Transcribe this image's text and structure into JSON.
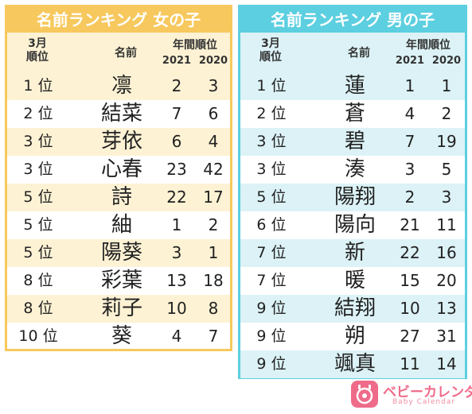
{
  "columns": {
    "month": "3月\n順位",
    "name": "名前",
    "annual": "年間順位",
    "year1": "2021",
    "year2": "2020"
  },
  "girls": {
    "title": "名前ランキング 女の子",
    "rows": [
      {
        "rank": "1 位",
        "name": "凛",
        "y2021": "2",
        "y2020": "3"
      },
      {
        "rank": "2 位",
        "name": "結菜",
        "y2021": "7",
        "y2020": "6"
      },
      {
        "rank": "3 位",
        "name": "芽依",
        "y2021": "6",
        "y2020": "4"
      },
      {
        "rank": "3 位",
        "name": "心春",
        "y2021": "23",
        "y2020": "42"
      },
      {
        "rank": "5 位",
        "name": "詩",
        "y2021": "22",
        "y2020": "17"
      },
      {
        "rank": "5 位",
        "name": "紬",
        "y2021": "1",
        "y2020": "2"
      },
      {
        "rank": "5 位",
        "name": "陽葵",
        "y2021": "3",
        "y2020": "1"
      },
      {
        "rank": "8 位",
        "name": "彩葉",
        "y2021": "13",
        "y2020": "18"
      },
      {
        "rank": "8 位",
        "name": "莉子",
        "y2021": "10",
        "y2020": "8"
      },
      {
        "rank": "10 位",
        "name": "葵",
        "y2021": "4",
        "y2020": "7"
      }
    ]
  },
  "boys": {
    "title": "名前ランキング 男の子",
    "rows": [
      {
        "rank": "1 位",
        "name": "蓮",
        "y2021": "1",
        "y2020": "1"
      },
      {
        "rank": "2 位",
        "name": "蒼",
        "y2021": "4",
        "y2020": "2"
      },
      {
        "rank": "3 位",
        "name": "碧",
        "y2021": "7",
        "y2020": "19"
      },
      {
        "rank": "3 位",
        "name": "湊",
        "y2021": "3",
        "y2020": "5"
      },
      {
        "rank": "5 位",
        "name": "陽翔",
        "y2021": "2",
        "y2020": "3"
      },
      {
        "rank": "6 位",
        "name": "陽向",
        "y2021": "21",
        "y2020": "11"
      },
      {
        "rank": "7 位",
        "name": "新",
        "y2021": "22",
        "y2020": "16"
      },
      {
        "rank": "7 位",
        "name": "暖",
        "y2021": "15",
        "y2020": "20"
      },
      {
        "rank": "9 位",
        "name": "結翔",
        "y2021": "10",
        "y2020": "13"
      },
      {
        "rank": "9 位",
        "name": "朔",
        "y2021": "27",
        "y2020": "31"
      },
      {
        "rank": "9 位",
        "name": "颯真",
        "y2021": "11",
        "y2020": "14"
      }
    ]
  },
  "logo": {
    "brand": "ベビーカレンダー",
    "sub": "Baby Calendar",
    "icon": "baby-calendar-logo-icon"
  },
  "colors": {
    "girls_accent": "#f7c85d",
    "girls_stripe": "#fdf2d4",
    "boys_accent": "#5ccfe0",
    "boys_stripe": "#dcf2f6",
    "logo": "#ef6b8a"
  }
}
